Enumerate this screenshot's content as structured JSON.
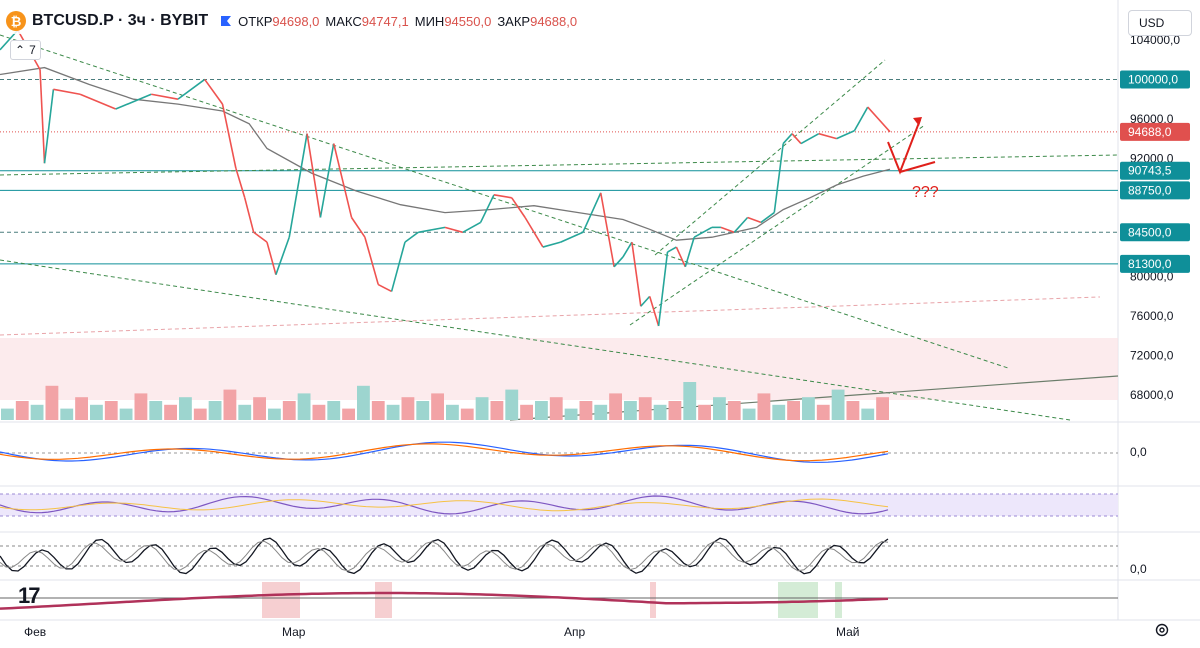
{
  "header": {
    "symbol": "BTCUSD.P · 3ч · BYBIT",
    "open_label": "ОТКР",
    "open_value": "94698,0",
    "high_label": "МАКС",
    "high_value": "94747,1",
    "low_label": "МИН",
    "low_value": "94550,0",
    "close_label": "ЗАКР",
    "close_value": "94688,0"
  },
  "indicator_toggle_count": "7",
  "currency": "USD",
  "colors": {
    "up": "#26a69a",
    "down": "#ef5350",
    "teal": "#0f8f99",
    "price_badge": "#e0504e",
    "annotation": "#e0201b"
  },
  "chart_data": {
    "type": "line",
    "main": {
      "y_ticks": [
        "104000,0",
        "96000,0",
        "92000,0",
        "80000,0",
        "76000,0",
        "72000,0",
        "68000,0"
      ],
      "y_tick_values": [
        104000,
        96000,
        92000,
        80000,
        76000,
        72000,
        68000
      ],
      "x_labels": [
        "Фев",
        "Мар",
        "Апр",
        "Май"
      ],
      "price_badges": [
        {
          "label": "100000,0",
          "value": 100000,
          "style": "teal"
        },
        {
          "label": "94688,0",
          "value": 94688,
          "style": "red"
        },
        {
          "label": "90743,5",
          "value": 90743.5,
          "style": "teal"
        },
        {
          "label": "88750,0",
          "value": 88750,
          "style": "teal"
        },
        {
          "label": "84500,0",
          "value": 84500,
          "style": "teal"
        },
        {
          "label": "81300,0",
          "value": 81300,
          "style": "teal"
        }
      ],
      "annotation_text": "???",
      "price_path": [
        [
          0,
          103000
        ],
        [
          0.02,
          105000
        ],
        [
          0.045,
          101000
        ],
        [
          0.05,
          91500
        ],
        [
          0.06,
          99000
        ],
        [
          0.09,
          98500
        ],
        [
          0.13,
          97000
        ],
        [
          0.17,
          98500
        ],
        [
          0.2,
          98000
        ],
        [
          0.23,
          100000
        ],
        [
          0.25,
          97500
        ],
        [
          0.265,
          91000
        ],
        [
          0.275,
          88000
        ],
        [
          0.285,
          84500
        ],
        [
          0.3,
          83500
        ],
        [
          0.31,
          80200
        ],
        [
          0.325,
          84000
        ],
        [
          0.345,
          94500
        ],
        [
          0.36,
          86000
        ],
        [
          0.375,
          93500
        ],
        [
          0.395,
          86000
        ],
        [
          0.41,
          84000
        ],
        [
          0.425,
          79200
        ],
        [
          0.44,
          78500
        ],
        [
          0.455,
          83500
        ],
        [
          0.47,
          84500
        ],
        [
          0.5,
          85000
        ],
        [
          0.52,
          84500
        ],
        [
          0.54,
          85500
        ],
        [
          0.555,
          88300
        ],
        [
          0.575,
          88000
        ],
        [
          0.59,
          86000
        ],
        [
          0.61,
          83000
        ],
        [
          0.63,
          83500
        ],
        [
          0.655,
          84500
        ],
        [
          0.675,
          88500
        ],
        [
          0.69,
          81000
        ],
        [
          0.7,
          82000
        ],
        [
          0.71,
          83500
        ],
        [
          0.72,
          77000
        ],
        [
          0.73,
          78000
        ],
        [
          0.74,
          75000
        ],
        [
          0.75,
          82500
        ],
        [
          0.76,
          83000
        ],
        [
          0.77,
          81000
        ],
        [
          0.78,
          84000
        ],
        [
          0.8,
          85000
        ],
        [
          0.81,
          85000
        ],
        [
          0.825,
          84500
        ],
        [
          0.84,
          86000
        ],
        [
          0.855,
          85500
        ],
        [
          0.87,
          86500
        ],
        [
          0.88,
          93500
        ],
        [
          0.89,
          94500
        ],
        [
          0.9,
          93500
        ],
        [
          0.92,
          94500
        ],
        [
          0.94,
          94000
        ],
        [
          0.96,
          94800
        ],
        [
          0.975,
          97200
        ],
        [
          1.0,
          94688
        ]
      ],
      "ma_path": [
        [
          0,
          100500
        ],
        [
          0.05,
          101200
        ],
        [
          0.1,
          99500
        ],
        [
          0.15,
          98000
        ],
        [
          0.2,
          97500
        ],
        [
          0.25,
          96800
        ],
        [
          0.28,
          95500
        ],
        [
          0.3,
          93000
        ],
        [
          0.35,
          90500
        ],
        [
          0.4,
          88700
        ],
        [
          0.45,
          87300
        ],
        [
          0.5,
          86500
        ],
        [
          0.55,
          86800
        ],
        [
          0.6,
          87200
        ],
        [
          0.65,
          86500
        ],
        [
          0.7,
          85800
        ],
        [
          0.73,
          84800
        ],
        [
          0.76,
          83700
        ],
        [
          0.8,
          84000
        ],
        [
          0.85,
          85000
        ],
        [
          0.88,
          86800
        ],
        [
          0.91,
          88000
        ],
        [
          0.94,
          89300
        ],
        [
          0.97,
          90200
        ],
        [
          1.0,
          90900
        ]
      ],
      "volume": [
        0.3,
        0.5,
        0.4,
        0.9,
        0.3,
        0.6,
        0.4,
        0.5,
        0.3,
        0.7,
        0.5,
        0.4,
        0.6,
        0.3,
        0.5,
        0.8,
        0.4,
        0.6,
        0.3,
        0.5,
        0.7,
        0.4,
        0.5,
        0.3,
        0.9,
        0.5,
        0.4,
        0.6,
        0.5,
        0.7,
        0.4,
        0.3,
        0.6,
        0.5,
        0.8,
        0.4,
        0.5,
        0.6,
        0.3,
        0.5,
        0.4,
        0.7,
        0.5,
        0.6,
        0.4,
        0.5,
        1.0,
        0.4,
        0.6,
        0.5,
        0.3,
        0.7,
        0.4,
        0.5,
        0.6,
        0.4,
        0.8,
        0.5,
        0.3,
        0.6
      ],
      "volume_colors": [
        "up",
        "down"
      ]
    },
    "panels": [
      {
        "name": "macd",
        "label": "0,0"
      },
      {
        "name": "rsi",
        "label": ""
      },
      {
        "name": "stoch",
        "label": "0,0"
      },
      {
        "name": "trend",
        "label": ""
      }
    ]
  }
}
